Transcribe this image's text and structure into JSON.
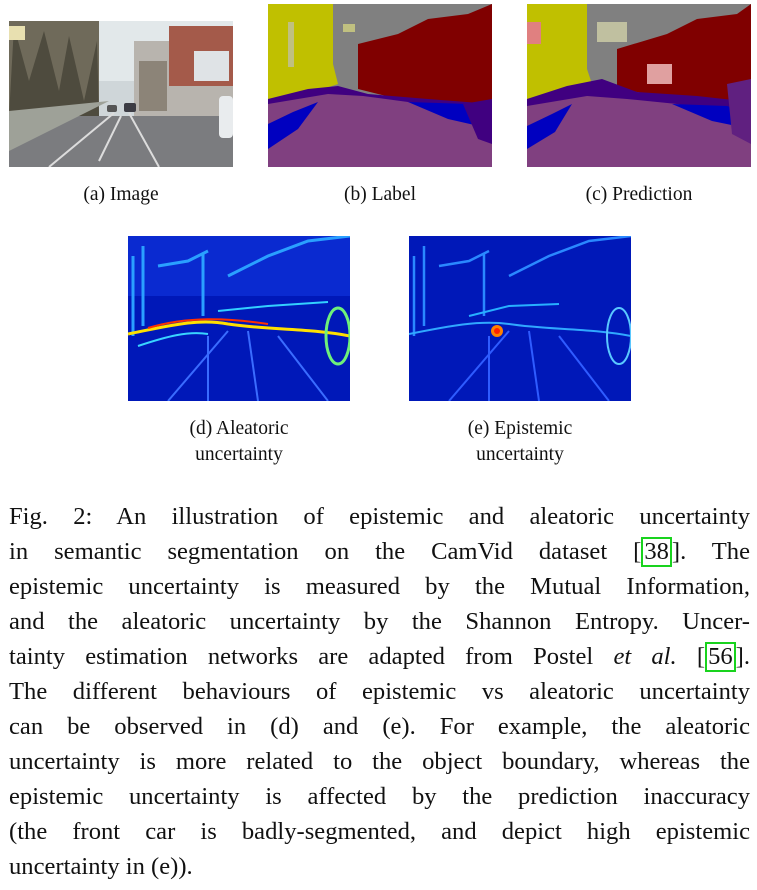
{
  "figure": {
    "panels": [
      {
        "id": "a",
        "caption": "(a)  Image"
      },
      {
        "id": "b",
        "caption": "(b)  Label"
      },
      {
        "id": "c",
        "caption": "(c)  Prediction"
      },
      {
        "id": "d",
        "caption_line1": "(d)  Aleatoric",
        "caption_line2": "uncertainty"
      },
      {
        "id": "e",
        "caption_line1": "(e)  Epistemic",
        "caption_line2": "uncertainty"
      }
    ]
  },
  "caption": {
    "l1": "Fig. 2: An illustration of epistemic and aleatoric uncertainty",
    "l2_pre": "in semantic segmentation on the CamVid dataset [",
    "cite1": "38",
    "l2_post": "]. The",
    "l3": "epistemic uncertainty is measured by the Mutual Information,",
    "l4": "and the aleatoric uncertainty by the Shannon Entropy. Uncer-",
    "l5_pre": "tainty estimation networks are adapted from Postel ",
    "etal": "et al.",
    "l5_mid": " [",
    "cite2": "56",
    "l5_post": "].",
    "l6": "The different behaviours of epistemic vs aleatoric uncertainty",
    "l7": "can be observed in (d) and (e). For example, the aleatoric",
    "l8": "uncertainty is more related to the object boundary, whereas the",
    "l9": "epistemic uncertainty is affected by the prediction inaccuracy",
    "l10": "(the front car is badly-segmented, and depict high epistemic",
    "l11": "uncertainty in (e))."
  }
}
